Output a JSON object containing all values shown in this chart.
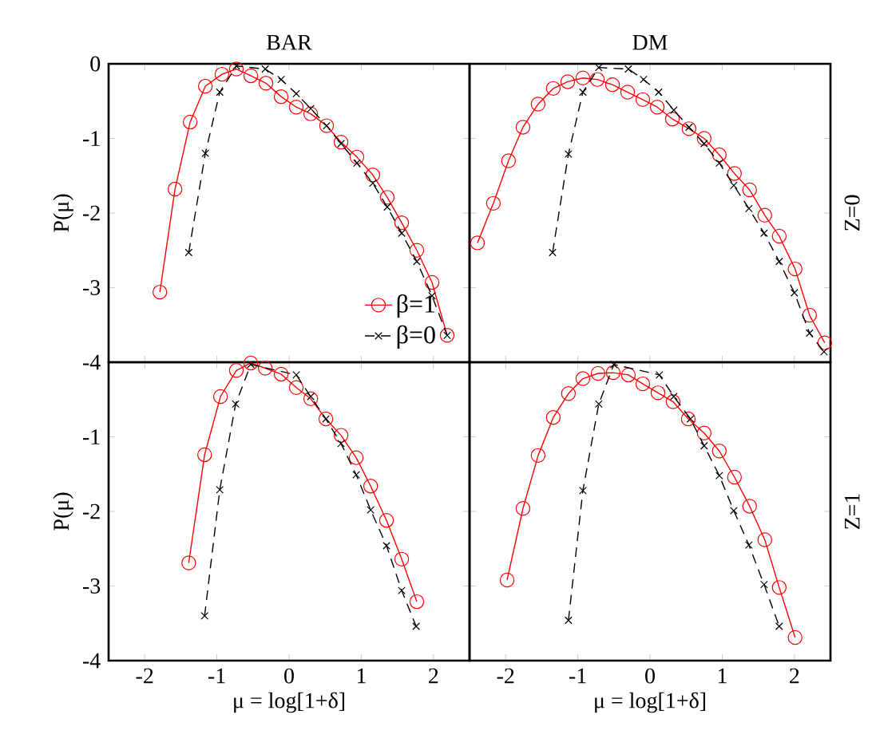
{
  "chart_data": [
    {
      "type": "line",
      "title": "BAR",
      "ylabel": "P(μ)",
      "xlim": [
        -2.5,
        2.5
      ],
      "ylim": [
        -4,
        0
      ],
      "xticks": [
        -2,
        -1,
        0,
        1,
        2
      ],
      "yticks": [
        -4,
        -3,
        -2,
        -1,
        0
      ],
      "tick_labels": "y",
      "legend": "bottom right",
      "series": [
        {
          "name": "β=1",
          "color": "#ff0000",
          "marker": "circle",
          "line_style": "solid",
          "x": [
            -1.79,
            -1.58,
            -1.37,
            -1.16,
            -0.93,
            -0.73,
            -0.53,
            -0.32,
            -0.11,
            0.1,
            0.3,
            0.52,
            0.72,
            0.94,
            1.16,
            1.36,
            1.56,
            1.77,
            1.98,
            2.19
          ],
          "values": [
            -3.06,
            -1.68,
            -0.78,
            -0.3,
            -0.14,
            -0.07,
            -0.16,
            -0.26,
            -0.44,
            -0.58,
            -0.67,
            -0.83,
            -1.05,
            -1.25,
            -1.49,
            -1.79,
            -2.13,
            -2.5,
            -2.93,
            -3.64
          ]
        },
        {
          "name": "β=0",
          "color": "#000000",
          "marker": "cross",
          "line_style": "dashed",
          "x": [
            -1.39,
            -1.16,
            -0.96,
            -0.73,
            -0.33,
            -0.11,
            0.1,
            0.3,
            0.52,
            0.72,
            0.94,
            1.16,
            1.36,
            1.56,
            1.77,
            1.98,
            2.19
          ],
          "values": [
            -2.53,
            -1.2,
            -0.38,
            -0.03,
            -0.07,
            -0.21,
            -0.4,
            -0.6,
            -0.83,
            -1.07,
            -1.33,
            -1.6,
            -1.92,
            -2.27,
            -2.65,
            -3.11,
            -3.64
          ]
        }
      ]
    },
    {
      "type": "line",
      "title": "DM",
      "y2label": "Z=0",
      "xlim": [
        -2.5,
        2.5
      ],
      "ylim": [
        -4,
        0
      ],
      "xticks": [
        -2,
        -1,
        0,
        1,
        2
      ],
      "yticks": [
        -4,
        -3,
        -2,
        -1,
        0
      ],
      "tick_labels": false,
      "series": [
        {
          "color": "#ff0000",
          "marker": "circle",
          "line_style": "solid",
          "x": [
            -2.39,
            -2.17,
            -1.96,
            -1.76,
            -1.55,
            -1.34,
            -1.14,
            -0.93,
            -0.73,
            -0.52,
            -0.31,
            -0.1,
            0.1,
            0.31,
            0.54,
            0.75,
            0.96,
            1.17,
            1.38,
            1.59,
            1.79,
            2.01,
            2.21,
            2.42
          ],
          "values": [
            -2.4,
            -1.87,
            -1.3,
            -0.85,
            -0.54,
            -0.33,
            -0.24,
            -0.19,
            -0.21,
            -0.28,
            -0.38,
            -0.48,
            -0.58,
            -0.74,
            -0.87,
            -1.0,
            -1.22,
            -1.47,
            -1.69,
            -2.03,
            -2.31,
            -2.75,
            -3.37,
            -3.74
          ]
        },
        {
          "color": "#000000",
          "marker": "cross",
          "line_style": "dashed",
          "x": [
            -1.35,
            -1.13,
            -0.93,
            -0.71,
            -0.3,
            -0.09,
            0.12,
            0.33,
            0.54,
            0.75,
            0.96,
            1.16,
            1.37,
            1.58,
            1.79,
            2.0,
            2.21,
            2.41
          ],
          "values": [
            -2.53,
            -1.21,
            -0.38,
            -0.05,
            -0.07,
            -0.21,
            -0.38,
            -0.62,
            -0.85,
            -1.07,
            -1.33,
            -1.63,
            -1.94,
            -2.27,
            -2.65,
            -3.07,
            -3.61,
            -3.86
          ]
        }
      ]
    },
    {
      "type": "line",
      "xlabel": "μ = log[1+δ]",
      "ylabel": "P(μ)",
      "xlim": [
        -2.5,
        2.5
      ],
      "ylim": [
        -4,
        0
      ],
      "xticks": [
        -2,
        -1,
        0,
        1,
        2
      ],
      "yticks": [
        -4,
        -3,
        -2,
        -1,
        {
          "value": 0,
          "label": null
        }
      ],
      "series": [
        {
          "color": "#ff0000",
          "marker": "circle",
          "line_style": "solid",
          "x": [
            -1.39,
            -1.17,
            -0.95,
            -0.73,
            -0.53,
            -0.33,
            -0.11,
            0.1,
            0.3,
            0.51,
            0.72,
            0.93,
            1.13,
            1.35,
            1.56,
            1.77
          ],
          "values": [
            -2.69,
            -1.24,
            -0.46,
            -0.11,
            -0.01,
            -0.08,
            -0.16,
            -0.34,
            -0.49,
            -0.76,
            -0.98,
            -1.28,
            -1.66,
            -2.12,
            -2.64,
            -3.21
          ]
        },
        {
          "color": "#000000",
          "marker": "cross",
          "line_style": "dashed",
          "x": [
            -1.17,
            -0.96,
            -0.74,
            -0.53,
            0.1,
            0.3,
            0.51,
            0.72,
            0.93,
            1.13,
            1.35,
            1.56,
            1.76
          ],
          "values": [
            -3.4,
            -1.71,
            -0.56,
            -0.03,
            -0.17,
            -0.46,
            -0.76,
            -1.09,
            -1.51,
            -1.98,
            -2.46,
            -3.06,
            -3.54
          ]
        }
      ]
    },
    {
      "type": "line",
      "xlabel": "μ = log[1+δ]",
      "y2label": "Z=1",
      "xlim": [
        -2.5,
        2.5
      ],
      "ylim": [
        -4,
        0
      ],
      "xticks": [
        -2,
        -1,
        0,
        1,
        2
      ],
      "yticks": [
        -4,
        -3,
        -2,
        -1,
        0
      ],
      "tick_labels": "x",
      "series": [
        {
          "color": "#ff0000",
          "marker": "circle",
          "line_style": "solid",
          "x": [
            -1.98,
            -1.76,
            -1.55,
            -1.34,
            -1.13,
            -0.93,
            -0.72,
            -0.51,
            -0.3,
            -0.1,
            0.11,
            0.32,
            0.53,
            0.75,
            0.96,
            1.17,
            1.38,
            1.59,
            1.79,
            2.01
          ],
          "values": [
            -2.92,
            -1.96,
            -1.25,
            -0.74,
            -0.42,
            -0.22,
            -0.15,
            -0.14,
            -0.17,
            -0.29,
            -0.41,
            -0.53,
            -0.76,
            -0.95,
            -1.19,
            -1.54,
            -1.93,
            -2.38,
            -3.02,
            -3.69
          ]
        },
        {
          "color": "#000000",
          "marker": "cross",
          "line_style": "dashed",
          "x": [
            -1.13,
            -0.93,
            -0.71,
            -0.5,
            0.13,
            0.33,
            0.56,
            0.75,
            0.96,
            1.16,
            1.37,
            1.58,
            1.79
          ],
          "values": [
            -3.46,
            -1.72,
            -0.56,
            -0.03,
            -0.17,
            -0.46,
            -0.76,
            -1.12,
            -1.52,
            -1.99,
            -2.45,
            -2.98,
            -3.54
          ]
        }
      ]
    }
  ]
}
